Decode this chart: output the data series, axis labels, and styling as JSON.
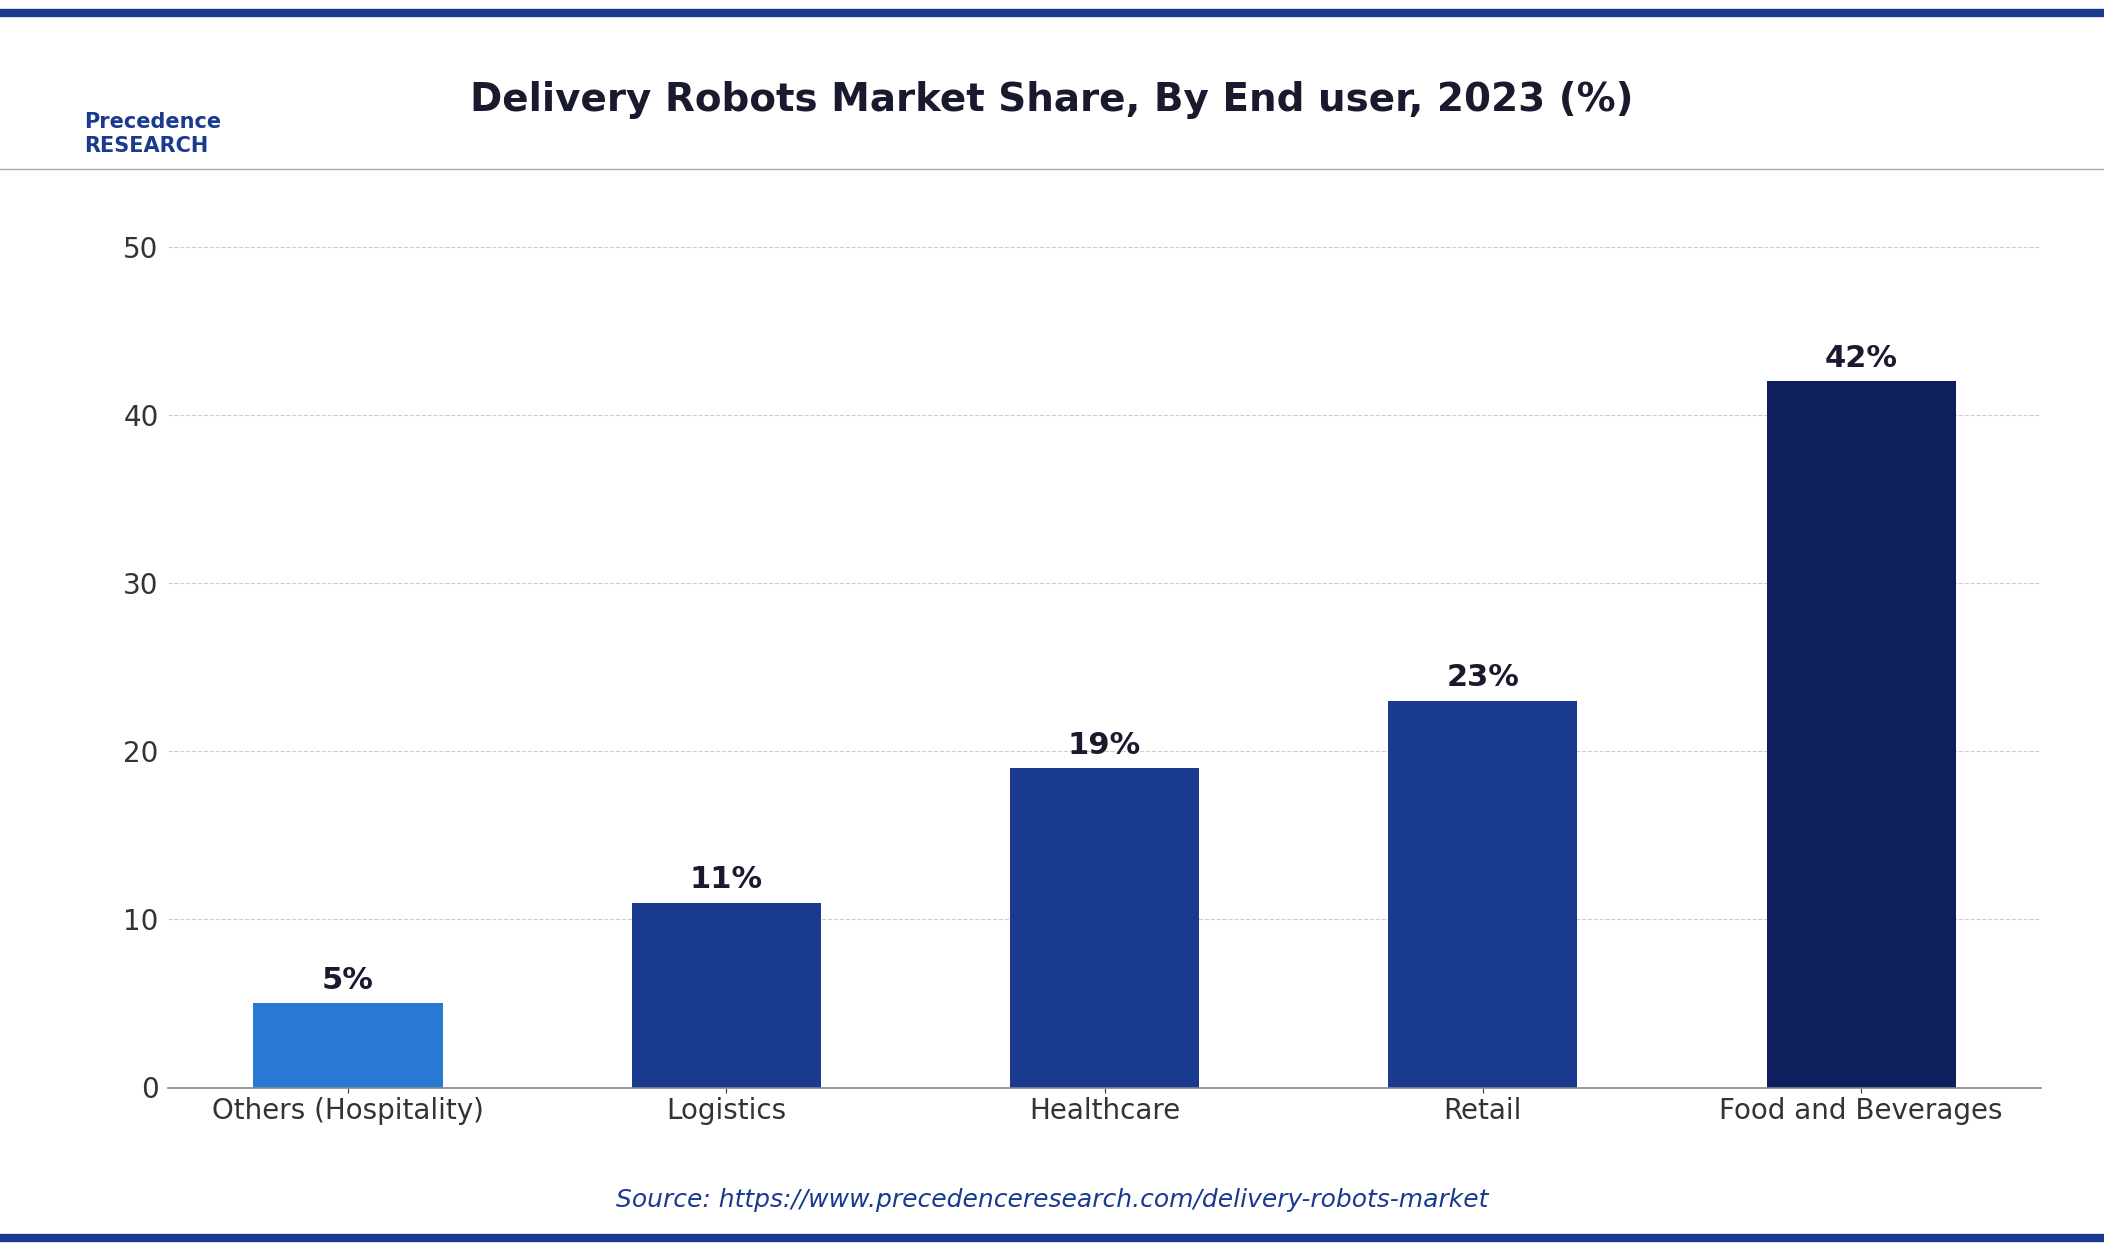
{
  "title": "Delivery Robots Market Share, By End user, 2023 (%)",
  "categories": [
    "Others (Hospitality)",
    "Logistics",
    "Healthcare",
    "Retail",
    "Food and Beverages"
  ],
  "values": [
    5,
    11,
    19,
    23,
    42
  ],
  "labels": [
    "5%",
    "11%",
    "19%",
    "23%",
    "42%"
  ],
  "bar_colors": [
    "#2979d4",
    "#1a3a8f",
    "#1a3a8f",
    "#1a3a8f",
    "#0d1f5c"
  ],
  "ylim": [
    0,
    55
  ],
  "yticks": [
    0,
    10,
    20,
    30,
    40,
    50
  ],
  "background_color": "#ffffff",
  "plot_bg_color": "#ffffff",
  "title_color": "#1a1a2e",
  "tick_color": "#333333",
  "grid_color": "#cccccc",
  "source_text": "Source: https://www.precedenceresearch.com/delivery-robots-market",
  "source_color": "#1a3a8f",
  "border_color": "#1a3a8f",
  "title_fontsize": 28,
  "label_fontsize": 22,
  "tick_fontsize": 20,
  "source_fontsize": 18
}
